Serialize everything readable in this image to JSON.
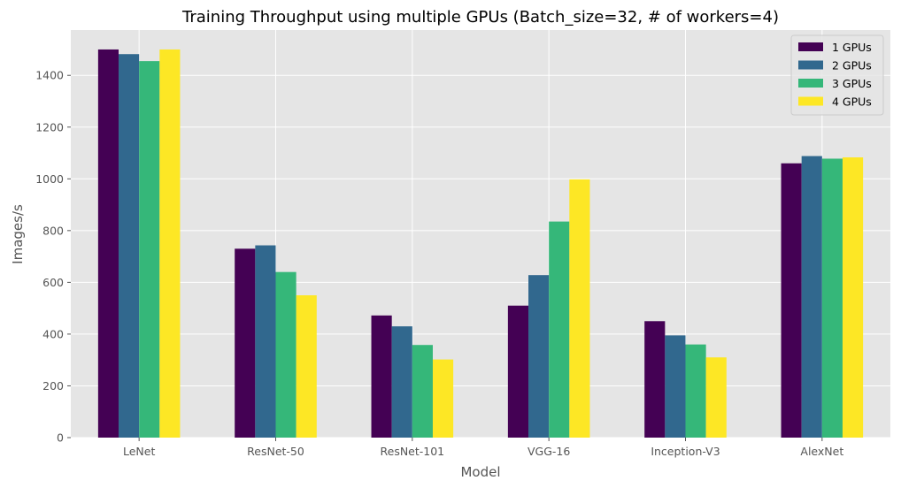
{
  "chart_data": {
    "type": "bar",
    "title": "Training Throughput using multiple GPUs (Batch_size=32, # of workers=4)",
    "xlabel": "Model",
    "ylabel": "Images/s",
    "categories": [
      "LeNet",
      "ResNet-50",
      "ResNet-101",
      "VGG-16",
      "Inception-V3",
      "AlexNet"
    ],
    "series": [
      {
        "name": "1 GPUs",
        "color": "#440154",
        "values": [
          1500,
          730,
          472,
          510,
          450,
          1060
        ]
      },
      {
        "name": "2 GPUs",
        "color": "#31688e",
        "values": [
          1482,
          743,
          430,
          628,
          395,
          1088
        ]
      },
      {
        "name": "3 GPUs",
        "color": "#35b779",
        "values": [
          1455,
          640,
          358,
          835,
          360,
          1078
        ]
      },
      {
        "name": "4 GPUs",
        "color": "#fde725",
        "values": [
          1500,
          550,
          302,
          998,
          310,
          1083
        ]
      }
    ],
    "ylim": [
      0,
      1575
    ],
    "yticks": [
      0,
      200,
      400,
      600,
      800,
      1000,
      1200,
      1400
    ],
    "grid": true,
    "legend_position": "top-right",
    "background_color": "#e5e5e5",
    "grid_color": "#ffffff"
  }
}
